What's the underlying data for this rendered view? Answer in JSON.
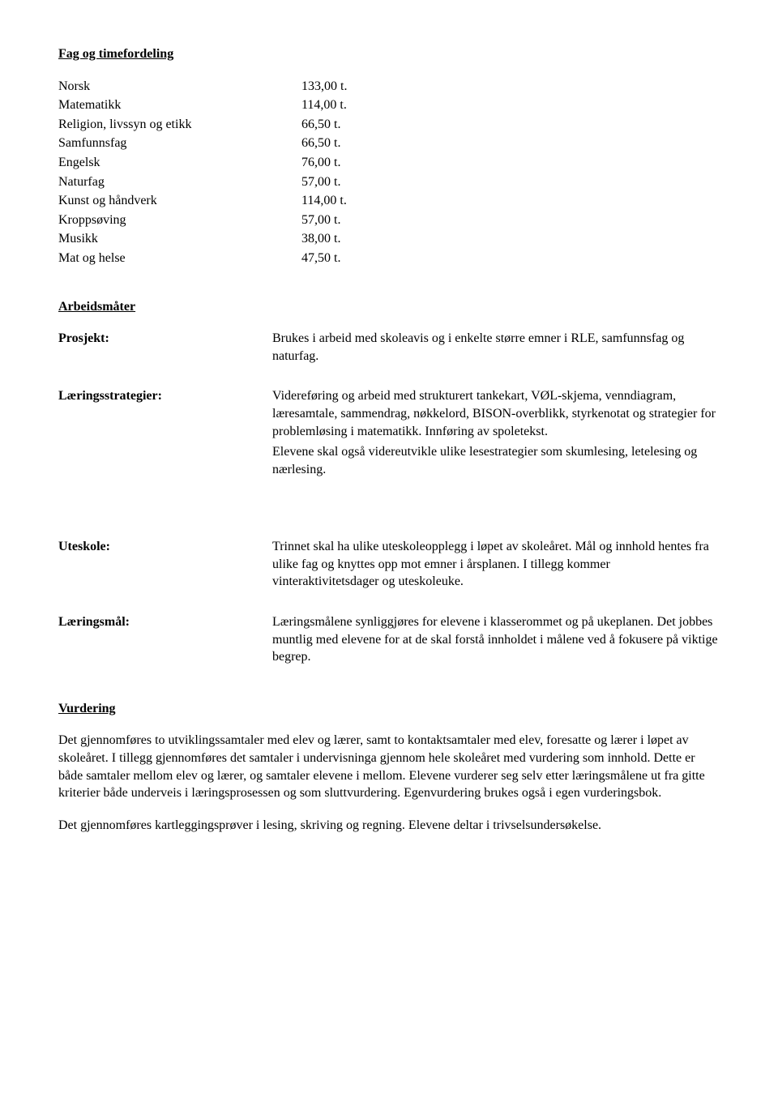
{
  "sections": {
    "fag": {
      "title": "Fag og timefordeling",
      "rows": [
        {
          "subject": "Norsk",
          "hours": "133,00 t."
        },
        {
          "subject": "Matematikk",
          "hours": "114,00 t."
        },
        {
          "subject": "Religion, livssyn og etikk",
          "hours": "66,50 t."
        },
        {
          "subject": "Samfunnsfag",
          "hours": "66,50 t."
        },
        {
          "subject": "Engelsk",
          "hours": "76,00 t."
        },
        {
          "subject": "Naturfag",
          "hours": "57,00 t."
        },
        {
          "subject": "Kunst og håndverk",
          "hours": "114,00 t."
        },
        {
          "subject": "Kroppsøving",
          "hours": "57,00 t."
        },
        {
          "subject": "Musikk",
          "hours": "38,00 t."
        },
        {
          "subject": "Mat og helse",
          "hours": "47,50 t."
        }
      ]
    },
    "arbeidsmater": {
      "title": "Arbeidsmåter",
      "items": {
        "prosjekt": {
          "label": "Prosjekt:",
          "text": "Brukes i arbeid med skoleavis og i enkelte større emner i RLE, samfunnsfag og naturfag."
        },
        "laeringsstrategier": {
          "label": "Læringsstrategier:",
          "text1": "Videreføring og arbeid med strukturert tankekart, VØL-skjema, venndiagram, læresamtale, sammendrag, nøkkelord, BISON-overblikk, styrkenotat og strategier for problemløsing i matematikk. Innføring av spoletekst.",
          "text2": "Elevene skal også videreutvikle ulike lesestrategier som skumlesing, letelesing og nærlesing."
        },
        "uteskole": {
          "label": "Uteskole:",
          "text": "Trinnet skal ha ulike uteskoleopplegg i løpet av skoleåret. Mål og innhold hentes fra ulike fag og knyttes opp mot emner i årsplanen. I tillegg kommer vinteraktivitetsdager og uteskoleuke."
        },
        "laeringsmal": {
          "label": "Læringsmål:",
          "text": "Læringsmålene synliggjøres for elevene i klasserommet og på ukeplanen. Det jobbes muntlig med elevene for at de skal forstå innholdet i målene ved å fokusere på viktige begrep."
        }
      }
    },
    "vurdering": {
      "title": "Vurdering",
      "para1": "Det gjennomføres to utviklingssamtaler med elev og lærer, samt to kontaktsamtaler med elev, foresatte og lærer i løpet av skoleåret. I tillegg gjennomføres det samtaler i undervisninga gjennom hele skoleåret med vurdering som innhold. Dette er både samtaler mellom elev og lærer, og samtaler elevene i mellom. Elevene vurderer seg selv etter læringsmålene ut fra gitte kriterier både underveis i læringsprosessen og som sluttvurdering. Egenvurdering brukes også i egen vurderingsbok.",
      "para2": "Det gjennomføres kartleggingsprøver i lesing, skriving og regning. Elevene deltar i trivselsundersøkelse."
    }
  }
}
